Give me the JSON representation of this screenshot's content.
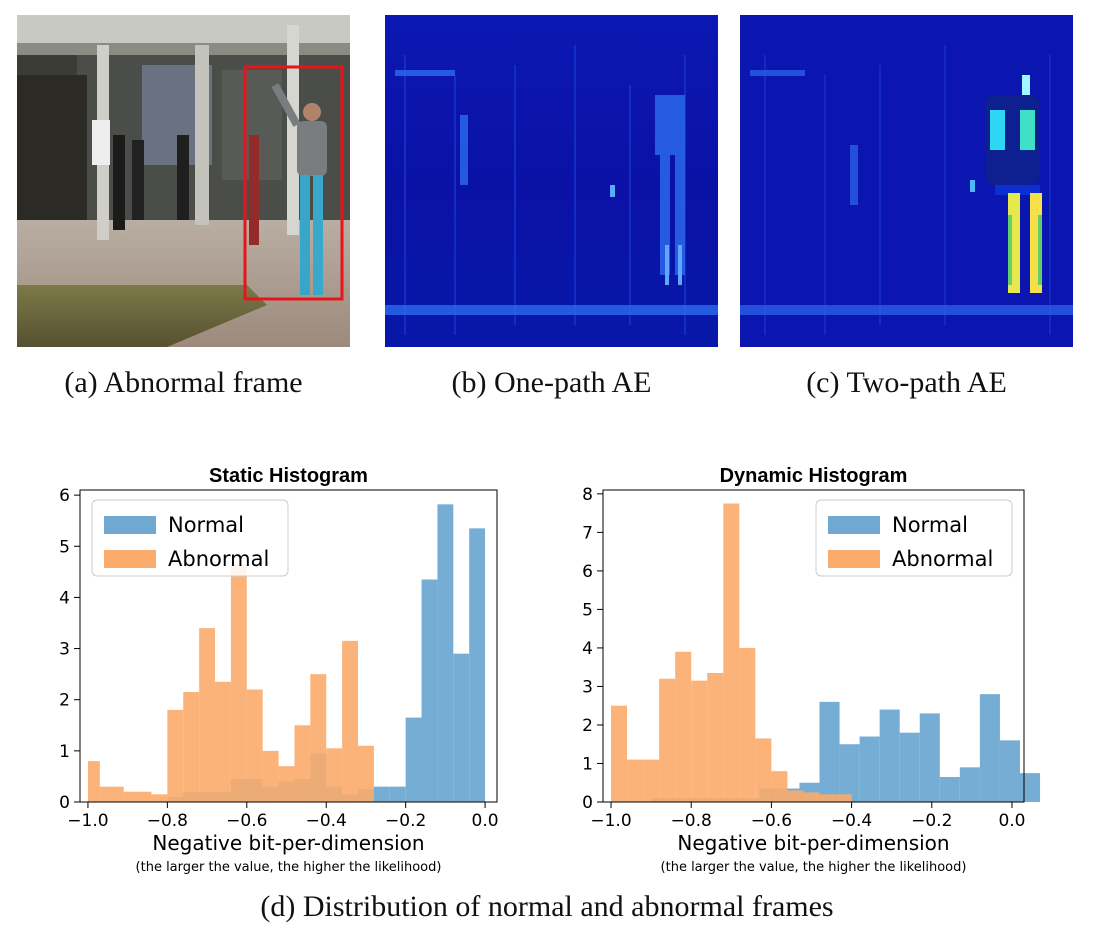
{
  "panels": [
    {
      "caption": "(a) Abnormal frame"
    },
    {
      "caption": "(b) One-path AE"
    },
    {
      "caption": "(c) Two-path AE"
    }
  ],
  "figure_caption": "(d) Distribution of normal and abnormal frames",
  "colors": {
    "normal": "#6fa9d2",
    "abnormal": "#fbab6b",
    "bbox": "#e8141b",
    "heatmap_bg": "#0a14b8"
  },
  "chart_data": [
    {
      "type": "bar",
      "title": "Static Histogram",
      "xlabel": "Negative bit-per-dimension",
      "xlabel_note": "(the larger the value, the higher the likelihood)",
      "xlim": [
        -1.02,
        0.03
      ],
      "ylim": [
        0,
        6.1
      ],
      "xticks": [
        -1.0,
        -0.8,
        -0.6,
        -0.4,
        -0.2,
        0.0
      ],
      "xtick_labels": [
        "−1.0",
        "−0.8",
        "−0.6",
        "−0.4",
        "−0.2",
        "0.0"
      ],
      "yticks": [
        0,
        1,
        2,
        3,
        4,
        5,
        6
      ],
      "legend": "top-left",
      "series": [
        {
          "name": "Normal",
          "bins": [
            [
              -1.0,
              -0.96,
              0.0
            ],
            [
              -0.96,
              -0.92,
              0.0
            ],
            [
              -0.92,
              -0.88,
              0.0
            ],
            [
              -0.88,
              -0.84,
              0.0
            ],
            [
              -0.84,
              -0.8,
              0.0
            ],
            [
              -0.8,
              -0.76,
              0.1
            ],
            [
              -0.76,
              -0.72,
              0.2
            ],
            [
              -0.72,
              -0.68,
              0.2
            ],
            [
              -0.68,
              -0.64,
              0.2
            ],
            [
              -0.64,
              -0.6,
              0.45
            ],
            [
              -0.6,
              -0.56,
              0.45
            ],
            [
              -0.56,
              -0.52,
              0.3
            ],
            [
              -0.52,
              -0.48,
              0.4
            ],
            [
              -0.48,
              -0.44,
              0.45
            ],
            [
              -0.44,
              -0.4,
              0.95
            ],
            [
              -0.4,
              -0.36,
              0.3
            ],
            [
              -0.36,
              -0.32,
              0.15
            ],
            [
              -0.32,
              -0.28,
              0.25
            ],
            [
              -0.28,
              -0.24,
              0.3
            ],
            [
              -0.24,
              -0.2,
              0.3
            ],
            [
              -0.2,
              -0.16,
              1.65
            ],
            [
              -0.16,
              -0.12,
              4.35
            ],
            [
              -0.12,
              -0.08,
              5.82
            ],
            [
              -0.08,
              -0.04,
              2.9
            ],
            [
              -0.04,
              0.0,
              5.35
            ],
            [
              0.0,
              0.0001,
              0.0
            ]
          ]
        },
        {
          "name": "Abnormal",
          "bins": [
            [
              -1.0,
              -0.97,
              0.8
            ],
            [
              -0.97,
              -0.91,
              0.3
            ],
            [
              -0.91,
              -0.84,
              0.2
            ],
            [
              -0.84,
              -0.8,
              0.15
            ],
            [
              -0.8,
              -0.76,
              1.8
            ],
            [
              -0.76,
              -0.72,
              2.15
            ],
            [
              -0.72,
              -0.68,
              3.4
            ],
            [
              -0.68,
              -0.64,
              2.35
            ],
            [
              -0.64,
              -0.6,
              4.65
            ],
            [
              -0.6,
              -0.56,
              2.2
            ],
            [
              -0.56,
              -0.52,
              1.0
            ],
            [
              -0.52,
              -0.48,
              0.7
            ],
            [
              -0.48,
              -0.44,
              1.5
            ],
            [
              -0.44,
              -0.4,
              2.5
            ],
            [
              -0.4,
              -0.36,
              1.05
            ],
            [
              -0.36,
              -0.32,
              3.15
            ],
            [
              -0.32,
              -0.28,
              1.1
            ]
          ]
        }
      ]
    },
    {
      "type": "bar",
      "title": "Dynamic Histogram",
      "xlabel": "Negative bit-per-dimension",
      "xlabel_note": "(the larger the value, the higher the likelihood)",
      "xlim": [
        -1.02,
        0.03
      ],
      "ylim": [
        0,
        8.1
      ],
      "xticks": [
        -1.0,
        -0.8,
        -0.6,
        -0.4,
        -0.2,
        0.0
      ],
      "xtick_labels": [
        "−1.0",
        "−0.8",
        "−0.6",
        "−0.4",
        "−0.2",
        "0.0"
      ],
      "yticks": [
        0,
        1,
        2,
        3,
        4,
        5,
        6,
        7,
        8
      ],
      "legend": "top-right",
      "series": [
        {
          "name": "Normal",
          "bins": [
            [
              -0.9,
              -0.63,
              0.1
            ],
            [
              -0.63,
              -0.58,
              0.35
            ],
            [
              -0.58,
              -0.53,
              0.35
            ],
            [
              -0.53,
              -0.48,
              0.5
            ],
            [
              -0.48,
              -0.43,
              2.6
            ],
            [
              -0.43,
              -0.38,
              1.5
            ],
            [
              -0.38,
              -0.33,
              1.7
            ],
            [
              -0.33,
              -0.28,
              2.4
            ],
            [
              -0.28,
              -0.23,
              1.8
            ],
            [
              -0.23,
              -0.18,
              2.3
            ],
            [
              -0.18,
              -0.13,
              0.65
            ],
            [
              -0.13,
              -0.08,
              0.9
            ],
            [
              -0.08,
              -0.03,
              2.8
            ],
            [
              -0.03,
              0.02,
              1.6
            ],
            [
              0.02,
              0.07,
              0.75
            ]
          ]
        },
        {
          "name": "Abnormal",
          "bins": [
            [
              -1.0,
              -0.96,
              2.5
            ],
            [
              -0.96,
              -0.92,
              1.1
            ],
            [
              -0.92,
              -0.88,
              1.1
            ],
            [
              -0.88,
              -0.84,
              3.2
            ],
            [
              -0.84,
              -0.8,
              3.9
            ],
            [
              -0.8,
              -0.76,
              3.15
            ],
            [
              -0.76,
              -0.72,
              3.35
            ],
            [
              -0.72,
              -0.68,
              7.75
            ],
            [
              -0.68,
              -0.64,
              4.0
            ],
            [
              -0.64,
              -0.6,
              1.65
            ],
            [
              -0.6,
              -0.56,
              0.8
            ],
            [
              -0.56,
              -0.52,
              0.3
            ],
            [
              -0.52,
              -0.48,
              0.25
            ],
            [
              -0.48,
              -0.44,
              0.2
            ],
            [
              -0.44,
              -0.4,
              0.2
            ]
          ]
        }
      ]
    }
  ]
}
